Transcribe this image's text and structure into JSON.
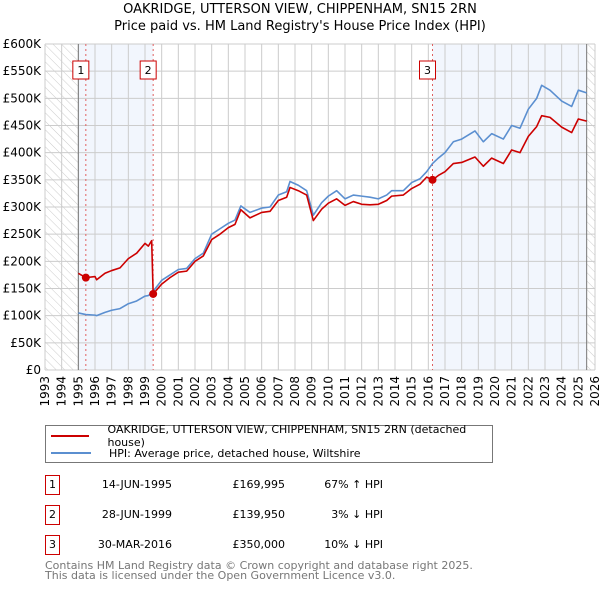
{
  "chart_data": {
    "type": "line",
    "title": "OAKRIDGE, UTTERSON VIEW, CHIPPENHAM, SN15 2RN",
    "subtitle": "Price paid vs. HM Land Registry's House Price Index (HPI)",
    "xlim": [
      1993,
      2026
    ],
    "ylim": [
      0,
      600000
    ],
    "y_ticks": [
      0,
      50000,
      100000,
      150000,
      200000,
      250000,
      300000,
      350000,
      400000,
      450000,
      500000,
      550000,
      600000
    ],
    "y_tick_labels": [
      "£0",
      "£50K",
      "£100K",
      "£150K",
      "£200K",
      "£250K",
      "£300K",
      "£350K",
      "£400K",
      "£450K",
      "£500K",
      "£550K",
      "£600K"
    ],
    "x_ticks": [
      1993,
      1994,
      1995,
      1996,
      1997,
      1998,
      1999,
      2000,
      2001,
      2002,
      2003,
      2004,
      2005,
      2006,
      2007,
      2008,
      2009,
      2010,
      2011,
      2012,
      2013,
      2014,
      2015,
      2016,
      2017,
      2018,
      2019,
      2020,
      2021,
      2022,
      2023,
      2024,
      2025,
      2026
    ],
    "grid": true,
    "series": [
      {
        "name": "OAKRIDGE, UTTERSON VIEW, CHIPPENHAM, SN15 2RN (detached house)",
        "color": "#cc0000",
        "x": [
          1995.0,
          1995.45,
          1996,
          1996.1,
          1996.6,
          1997,
          1997.5,
          1998,
          1998.5,
          1999.0,
          1999.2,
          1999.4,
          1999.49,
          2000,
          2000.5,
          2001,
          2001.5,
          2002,
          2002.5,
          2003,
          2003.5,
          2004,
          2004.4,
          2004.75,
          2005.3,
          2006,
          2006.5,
          2007,
          2007.5,
          2007.7,
          2008.2,
          2008.7,
          2009.1,
          2009.6,
          2010,
          2010.5,
          2011,
          2011.5,
          2012,
          2012.5,
          2013,
          2013.5,
          2013.8,
          2014.5,
          2015,
          2015.5,
          2015.9,
          2016.25,
          2016.6,
          2017,
          2017.5,
          2018,
          2018.8,
          2019.3,
          2019.8,
          2020.5,
          2021,
          2021.5,
          2022,
          2022.5,
          2022.8,
          2023.3,
          2024,
          2024.6,
          2025,
          2025.5
        ],
        "y": [
          178000,
          170000,
          172000,
          166000,
          178000,
          183000,
          188000,
          205000,
          215000,
          233000,
          228000,
          238000,
          140000,
          158000,
          170000,
          180000,
          182000,
          200000,
          210000,
          240000,
          250000,
          262000,
          268000,
          295000,
          280000,
          290000,
          292000,
          312000,
          318000,
          336000,
          330000,
          322000,
          275000,
          296000,
          307000,
          315000,
          303000,
          310000,
          305000,
          304000,
          305000,
          312000,
          320000,
          322000,
          334000,
          342000,
          355000,
          350000,
          358000,
          365000,
          380000,
          382000,
          392000,
          375000,
          390000,
          380000,
          405000,
          400000,
          430000,
          448000,
          468000,
          465000,
          447000,
          437000,
          462000,
          458000
        ]
      },
      {
        "name": "HPI: Average price, detached house, Wiltshire",
        "color": "#5b8fd0",
        "x": [
          1995.0,
          1995.45,
          1996,
          1996.1,
          1996.6,
          1997,
          1997.5,
          1998,
          1998.5,
          1999.0,
          1999.2,
          1999.4,
          1999.49,
          2000,
          2000.5,
          2001,
          2001.5,
          2002,
          2002.5,
          2003,
          2003.5,
          2004,
          2004.4,
          2004.75,
          2005.3,
          2006,
          2006.5,
          2007,
          2007.5,
          2007.7,
          2008.2,
          2008.7,
          2009.1,
          2009.6,
          2010,
          2010.5,
          2011,
          2011.5,
          2012,
          2012.5,
          2013,
          2013.5,
          2013.8,
          2014.5,
          2015,
          2015.5,
          2015.9,
          2016.25,
          2016.6,
          2017,
          2017.5,
          2018,
          2018.8,
          2019.3,
          2019.8,
          2020.5,
          2021,
          2021.5,
          2022,
          2022.5,
          2022.8,
          2023.3,
          2024,
          2024.6,
          2025,
          2025.5
        ],
        "y": [
          105000,
          102000,
          101000,
          100000,
          106000,
          110000,
          113000,
          122000,
          127000,
          136000,
          137000,
          142000,
          145000,
          165000,
          175000,
          185000,
          187000,
          205000,
          215000,
          250000,
          260000,
          270000,
          276000,
          302000,
          290000,
          298000,
          300000,
          322000,
          328000,
          347000,
          340000,
          330000,
          285000,
          308000,
          320000,
          330000,
          315000,
          322000,
          320000,
          318000,
          315000,
          322000,
          330000,
          330000,
          345000,
          352000,
          365000,
          380000,
          390000,
          400000,
          420000,
          425000,
          440000,
          420000,
          435000,
          425000,
          450000,
          445000,
          480000,
          500000,
          524000,
          515000,
          495000,
          485000,
          515000,
          510000
        ]
      }
    ],
    "sales": [
      {
        "label": "1",
        "x": 1995.45,
        "price": 169995,
        "date": "14-JUN-1995",
        "price_text": "£169,995",
        "hpi_text": "67% ↑ HPI"
      },
      {
        "label": "2",
        "x": 1999.49,
        "price": 139950,
        "date": "28-JUN-1999",
        "price_text": "£139,950",
        "hpi_text": "3% ↓ HPI"
      },
      {
        "label": "3",
        "x": 2016.25,
        "price": 350000,
        "date": "30-MAR-2016",
        "price_text": "£350,000",
        "hpi_text": "10% ↓ HPI"
      }
    ],
    "hatched_ranges": [
      [
        1993,
        1995
      ],
      [
        2025.5,
        2026
      ]
    ],
    "shaded_ranges": [
      [
        1995,
        1999.49
      ],
      [
        2016.25,
        2025.5
      ]
    ],
    "legend": "below"
  },
  "footer": {
    "line1": "Contains HM Land Registry data © Crown copyright and database right 2025.",
    "line2": "This data is licensed under the Open Government Licence v3.0."
  }
}
